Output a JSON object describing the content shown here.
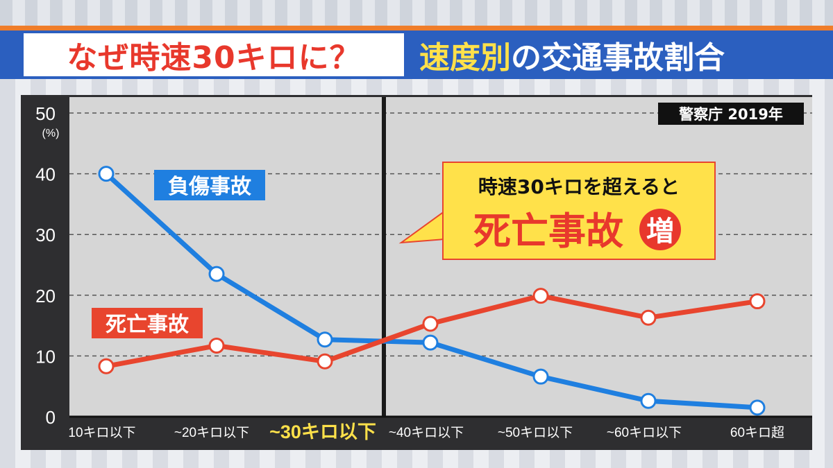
{
  "header": {
    "title_left": "なぜ時速30キロに？",
    "title_right_accent": "速度別",
    "title_right_rest": "の交通事故割合"
  },
  "source": "警察庁 2019年",
  "callout": {
    "line1": "時速30キロを超えると",
    "line2": "死亡事故",
    "badge": "増"
  },
  "colors": {
    "injury": "#1f7fe0",
    "fatal": "#e8452e",
    "highlight": "#ffe14a"
  },
  "chart_data": {
    "type": "line",
    "categories": [
      "10キロ以下",
      "~20キロ以下",
      "~30キロ以下",
      "~40キロ以下",
      "~50キロ以下",
      "~60キロ以下",
      "60キロ超"
    ],
    "highlight_category": "~30キロ以下",
    "y_ticks": [
      "0",
      "10",
      "20",
      "30",
      "40",
      "50"
    ],
    "y_unit": "(%)",
    "ylim": [
      0,
      50
    ],
    "grid": true,
    "series": [
      {
        "name": "負傷事故",
        "values": [
          40,
          23.5,
          12.7,
          12.2,
          6.6,
          2.6,
          1.5
        ]
      },
      {
        "name": "死亡事故",
        "values": [
          8.3,
          11.7,
          9.1,
          15.3,
          19.9,
          16.3,
          19.0
        ]
      }
    ]
  }
}
